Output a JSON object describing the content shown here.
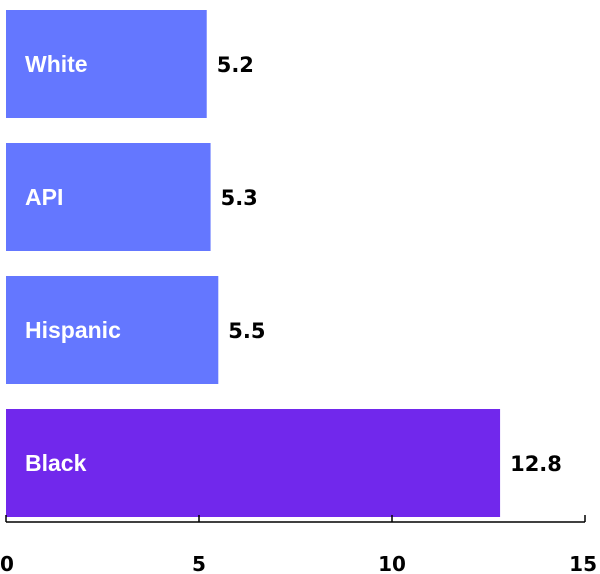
{
  "chart_data": {
    "type": "bar",
    "orientation": "horizontal",
    "title": "",
    "xlabel": "",
    "ylabel": "",
    "categories": [
      "White",
      "API",
      "Hispanic",
      "Black"
    ],
    "values": [
      5.2,
      5.3,
      5.5,
      12.8
    ],
    "value_labels": [
      "5.2",
      "5.3",
      "5.5",
      "12.8"
    ],
    "xlim": [
      0,
      15
    ],
    "xticks": [
      0,
      5,
      10,
      15
    ],
    "xtick_labels": [
      "0",
      "5",
      "10",
      "15"
    ],
    "grid": false,
    "legend": "none",
    "colors": {
      "default_bar": "#6477FF",
      "highlight_bar": "#7128EC",
      "highlight_category": "Black",
      "axis": "#000000"
    }
  }
}
